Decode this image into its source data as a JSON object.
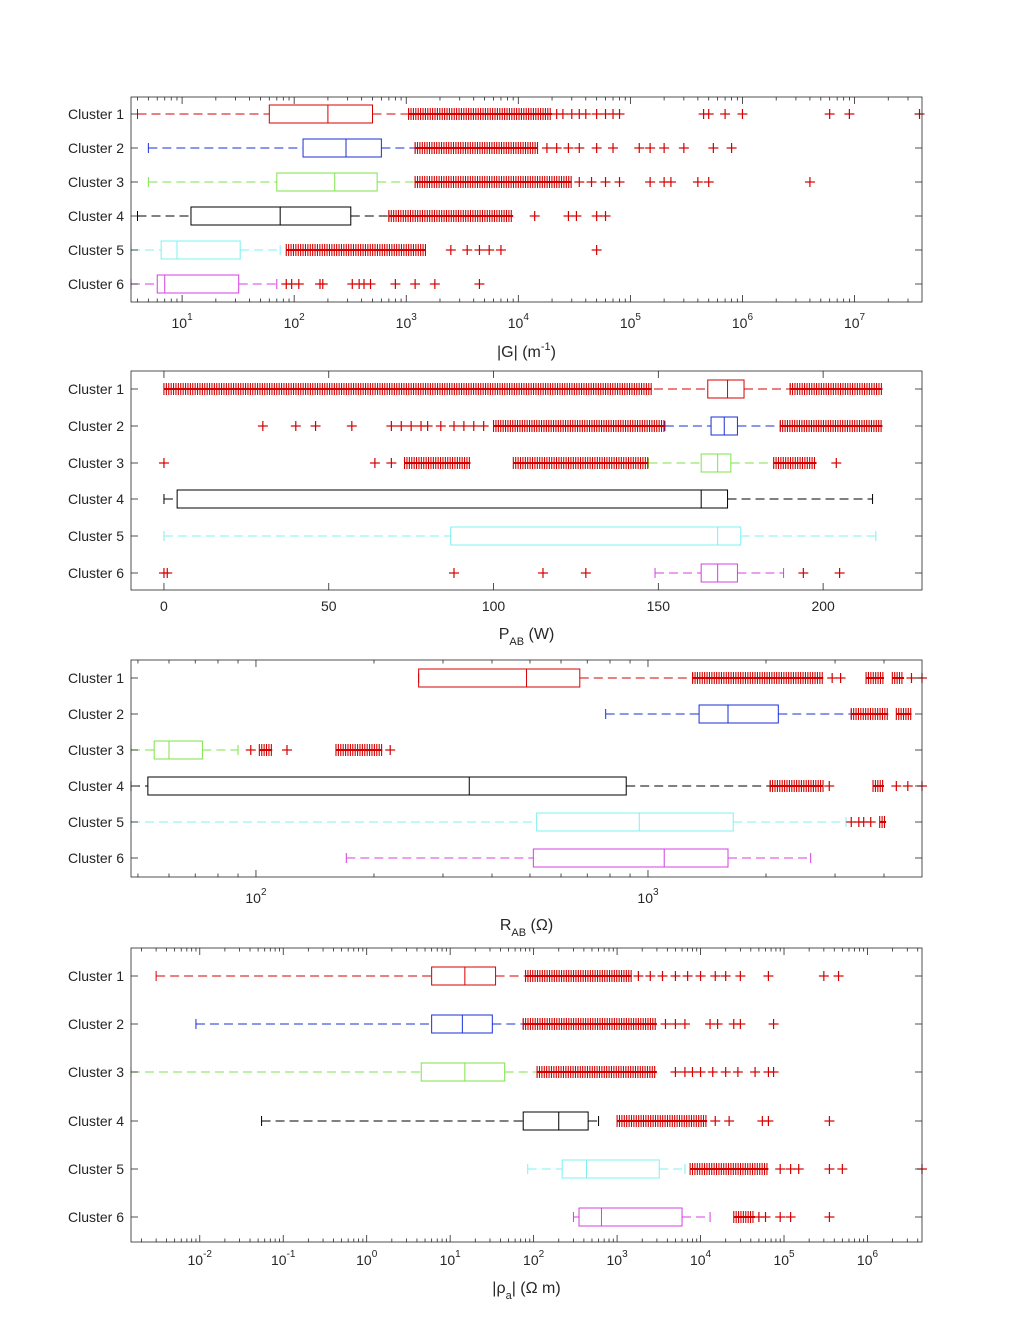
{
  "chart_data": [
    {
      "type": "box",
      "scale": "log",
      "xlabel_main": "|G|",
      "xlabel_unit": " (m",
      "xlabel_sup": "-1",
      "xlabel_close": ")",
      "xlim": [
        3.5,
        40000000
      ],
      "ticks": [
        {
          "value": 10,
          "base": "10",
          "exp": "1"
        },
        {
          "value": 100,
          "base": "10",
          "exp": "2"
        },
        {
          "value": 1000,
          "base": "10",
          "exp": "3"
        },
        {
          "value": 10000,
          "base": "10",
          "exp": "4"
        },
        {
          "value": 100000,
          "base": "10",
          "exp": "5"
        },
        {
          "value": 1000000,
          "base": "10",
          "exp": "6"
        },
        {
          "value": 10000000,
          "base": "10",
          "exp": "7"
        }
      ],
      "series": [
        {
          "name": "Cluster 1",
          "color": "#d40000",
          "whisker_low": 4,
          "q1": 60,
          "median": 200,
          "q3": 500,
          "whisker_high": 1050,
          "outlier_bands": [
            [
              1050,
              20000
            ]
          ],
          "outliers": [
            22000,
            25000,
            30000,
            35000,
            40000,
            50000,
            60000,
            70000,
            80000,
            450000,
            500000,
            700000,
            1000000,
            6000000,
            9000000,
            38000000
          ]
        },
        {
          "name": "Cluster 2",
          "color": "#1a2fd6",
          "whisker_low": 5,
          "q1": 120,
          "median": 290,
          "q3": 600,
          "whisker_high": 1200,
          "outlier_bands": [
            [
              1200,
              15000
            ]
          ],
          "outliers": [
            18000,
            22000,
            28000,
            35000,
            50000,
            70000,
            120000,
            150000,
            200000,
            300000,
            550000,
            800000
          ]
        },
        {
          "name": "Cluster 3",
          "color": "#7fe34a",
          "whisker_low": 5,
          "q1": 70,
          "median": 230,
          "q3": 550,
          "whisker_high": 1200,
          "outlier_bands": [
            [
              1200,
              30000
            ]
          ],
          "outliers": [
            35000,
            45000,
            60000,
            80000,
            150000,
            200000,
            230000,
            400000,
            500000,
            4000000
          ]
        },
        {
          "name": "Cluster 4",
          "color": "#000000",
          "whisker_low": 4,
          "q1": 12,
          "median": 75,
          "q3": 320,
          "whisker_high": 700,
          "outlier_bands": [
            [
              700,
              9000
            ]
          ],
          "outliers": [
            14000,
            28000,
            33000,
            50000,
            60000
          ]
        },
        {
          "name": "Cluster 5",
          "color": "#7ff0f0",
          "whisker_low": 3.5,
          "q1": 6.5,
          "median": 9,
          "q3": 33,
          "whisker_high": 75,
          "outlier_bands": [
            [
              85,
              1500
            ]
          ],
          "outliers": [
            2500,
            3500,
            4500,
            5500,
            7000,
            50000
          ]
        },
        {
          "name": "Cluster 6",
          "color": "#d43fe0",
          "whisker_low": 3.5,
          "q1": 6,
          "median": 7,
          "q3": 32,
          "whisker_high": 70,
          "outlier_bands": [],
          "outliers": [
            85,
            95,
            110,
            170,
            180,
            330,
            380,
            420,
            480,
            800,
            1200,
            1800,
            4500
          ]
        }
      ]
    },
    {
      "type": "box",
      "scale": "linear",
      "xlabel_main": "P",
      "xlabel_sub": "AB",
      "xlabel_unit": " (W)",
      "xlim": [
        -10,
        230
      ],
      "ticks": [
        {
          "value": 0,
          "label": "0"
        },
        {
          "value": 50,
          "label": "50"
        },
        {
          "value": 100,
          "label": "100"
        },
        {
          "value": 150,
          "label": "150"
        },
        {
          "value": 200,
          "label": "200"
        }
      ],
      "series": [
        {
          "name": "Cluster 1",
          "color": "#d40000",
          "whisker_low": 0,
          "q1": 165,
          "median": 171,
          "q3": 176,
          "whisker_high": 190,
          "outlier_bands": [
            [
              0,
              148
            ],
            [
              190,
              218
            ]
          ],
          "outliers": []
        },
        {
          "name": "Cluster 2",
          "color": "#1a2fd6",
          "whisker_low": 152,
          "q1": 166,
          "median": 170,
          "q3": 174,
          "whisker_high": 187,
          "outlier_bands": [
            [
              100,
              152
            ],
            [
              187,
              218
            ]
          ],
          "outliers": [
            30,
            40,
            46,
            57,
            69,
            72,
            75,
            78,
            80,
            84,
            88,
            91,
            94,
            97
          ]
        },
        {
          "name": "Cluster 3",
          "color": "#7fe34a",
          "whisker_low": 147,
          "q1": 163,
          "median": 168,
          "q3": 172,
          "whisker_high": 185,
          "outlier_bands": [
            [
              73,
              93
            ],
            [
              106,
              147
            ],
            [
              185,
              198
            ]
          ],
          "outliers": [
            0,
            64,
            69,
            204
          ]
        },
        {
          "name": "Cluster 4",
          "color": "#000000",
          "whisker_low": 0,
          "q1": 4,
          "median": 163,
          "q3": 171,
          "whisker_high": 215,
          "outlier_bands": [],
          "outliers": []
        },
        {
          "name": "Cluster 5",
          "color": "#7ff0f0",
          "whisker_low": 0,
          "q1": 87,
          "median": 168,
          "q3": 175,
          "whisker_high": 216,
          "outlier_bands": [],
          "outliers": []
        },
        {
          "name": "Cluster 6",
          "color": "#d43fe0",
          "whisker_low": 149,
          "q1": 163,
          "median": 168,
          "q3": 174,
          "whisker_high": 188,
          "outlier_bands": [],
          "outliers": [
            0,
            1,
            88,
            115,
            128,
            194,
            205
          ]
        }
      ]
    },
    {
      "type": "box",
      "scale": "log",
      "xlabel_main": "R",
      "xlabel_sub": "AB",
      "xlabel_unit": " (Ω)",
      "xlim": [
        48,
        5000
      ],
      "ticks": [
        {
          "value": 100,
          "base": "10",
          "exp": "2"
        },
        {
          "value": 1000,
          "base": "10",
          "exp": "3"
        }
      ],
      "series": [
        {
          "name": "Cluster 1",
          "color": "#d40000",
          "whisker_low": 260,
          "q1": 260,
          "median": 490,
          "q3": 670,
          "whisker_high": 1300,
          "outlier_bands": [
            [
              1300,
              2800
            ],
            [
              3600,
              4000
            ],
            [
              4200,
              4500
            ]
          ],
          "outliers": [
            2950,
            3100,
            4700,
            5000
          ]
        },
        {
          "name": "Cluster 2",
          "color": "#1a2fd6",
          "whisker_low": 780,
          "q1": 1350,
          "median": 1600,
          "q3": 2150,
          "whisker_high": 3300,
          "outlier_bands": [
            [
              3300,
              4100
            ],
            [
              4300,
              4700
            ]
          ],
          "outliers": []
        },
        {
          "name": "Cluster 3",
          "color": "#7fe34a",
          "whisker_low": 48,
          "q1": 55,
          "median": 60,
          "q3": 73,
          "whisker_high": 90,
          "outlier_bands": [
            [
              102,
              110
            ],
            [
              160,
              210
            ]
          ],
          "outliers": [
            97,
            120,
            220
          ]
        },
        {
          "name": "Cluster 4",
          "color": "#000000",
          "whisker_low": 48,
          "q1": 53,
          "median": 350,
          "q3": 880,
          "whisker_high": 2050,
          "outlier_bands": [
            [
              2050,
              2800
            ],
            [
              3750,
              4000
            ]
          ],
          "outliers": [
            2900,
            4300,
            4600,
            5000
          ]
        },
        {
          "name": "Cluster 5",
          "color": "#7ff0f0",
          "whisker_low": 48,
          "q1": 520,
          "median": 950,
          "q3": 1650,
          "whisker_high": 3200,
          "outlier_bands": [
            [
              3900,
              4050
            ]
          ],
          "outliers": [
            3300,
            3450,
            3550,
            3700
          ]
        },
        {
          "name": "Cluster 6",
          "color": "#d43fe0",
          "whisker_low": 170,
          "q1": 510,
          "median": 1100,
          "q3": 1600,
          "whisker_high": 2600,
          "outlier_bands": [],
          "outliers": []
        }
      ]
    },
    {
      "type": "box",
      "scale": "log",
      "xlabel_prefix": "|",
      "xlabel_main": "ρ",
      "xlabel_sub": "a",
      "xlabel_unit": "| (Ω m)",
      "xlim": [
        0.0015,
        4500000
      ],
      "ticks": [
        {
          "value": 0.01,
          "base": "10",
          "exp": "-2"
        },
        {
          "value": 0.1,
          "base": "10",
          "exp": "-1"
        },
        {
          "value": 1,
          "base": "10",
          "exp": "0"
        },
        {
          "value": 10,
          "base": "10",
          "exp": "1"
        },
        {
          "value": 100,
          "base": "10",
          "exp": "2"
        },
        {
          "value": 1000,
          "base": "10",
          "exp": "3"
        },
        {
          "value": 10000,
          "base": "10",
          "exp": "4"
        },
        {
          "value": 100000,
          "base": "10",
          "exp": "5"
        },
        {
          "value": 1000000,
          "base": "10",
          "exp": "6"
        }
      ],
      "series": [
        {
          "name": "Cluster 1",
          "color": "#d40000",
          "whisker_low": 0.003,
          "q1": 6,
          "median": 15,
          "q3": 35,
          "whisker_high": 80,
          "outlier_bands": [
            [
              80,
              1500
            ]
          ],
          "outliers": [
            1800,
            2500,
            3500,
            5000,
            7000,
            10000,
            15000,
            20000,
            30000,
            65000,
            300000,
            450000
          ]
        },
        {
          "name": "Cluster 2",
          "color": "#1a2fd6",
          "whisker_low": 0.009,
          "q1": 6,
          "median": 14,
          "q3": 32,
          "whisker_high": 75,
          "outlier_bands": [
            [
              75,
              3000
            ]
          ],
          "outliers": [
            3800,
            5000,
            6500,
            13000,
            16000,
            25000,
            30000,
            75000
          ]
        },
        {
          "name": "Cluster 3",
          "color": "#7fe34a",
          "whisker_low": 0.0015,
          "q1": 4.5,
          "median": 15,
          "q3": 45,
          "whisker_high": 110,
          "outlier_bands": [
            [
              110,
              3000
            ]
          ],
          "outliers": [
            5000,
            6500,
            8000,
            10000,
            14000,
            20000,
            28000,
            45000,
            65000,
            75000
          ]
        },
        {
          "name": "Cluster 4",
          "color": "#000000",
          "whisker_low": 0.055,
          "q1": 75,
          "median": 200,
          "q3": 450,
          "whisker_high": 600,
          "outlier_bands": [
            [
              1000,
              12000
            ]
          ],
          "outliers": [
            15000,
            22000,
            55000,
            65000,
            350000
          ]
        },
        {
          "name": "Cluster 5",
          "color": "#7ff0f0",
          "whisker_low": 85,
          "q1": 220,
          "median": 430,
          "q3": 3200,
          "whisker_high": 6500,
          "outlier_bands": [
            [
              7500,
              65000
            ]
          ],
          "outliers": [
            90000,
            120000,
            150000,
            350000,
            500000,
            4500000
          ]
        },
        {
          "name": "Cluster 6",
          "color": "#d43fe0",
          "whisker_low": 300,
          "q1": 350,
          "median": 650,
          "q3": 6000,
          "whisker_high": 13000,
          "outlier_bands": [
            [
              25000,
              45000
            ]
          ],
          "outliers": [
            50000,
            60000,
            90000,
            120000,
            350000
          ]
        }
      ]
    }
  ]
}
